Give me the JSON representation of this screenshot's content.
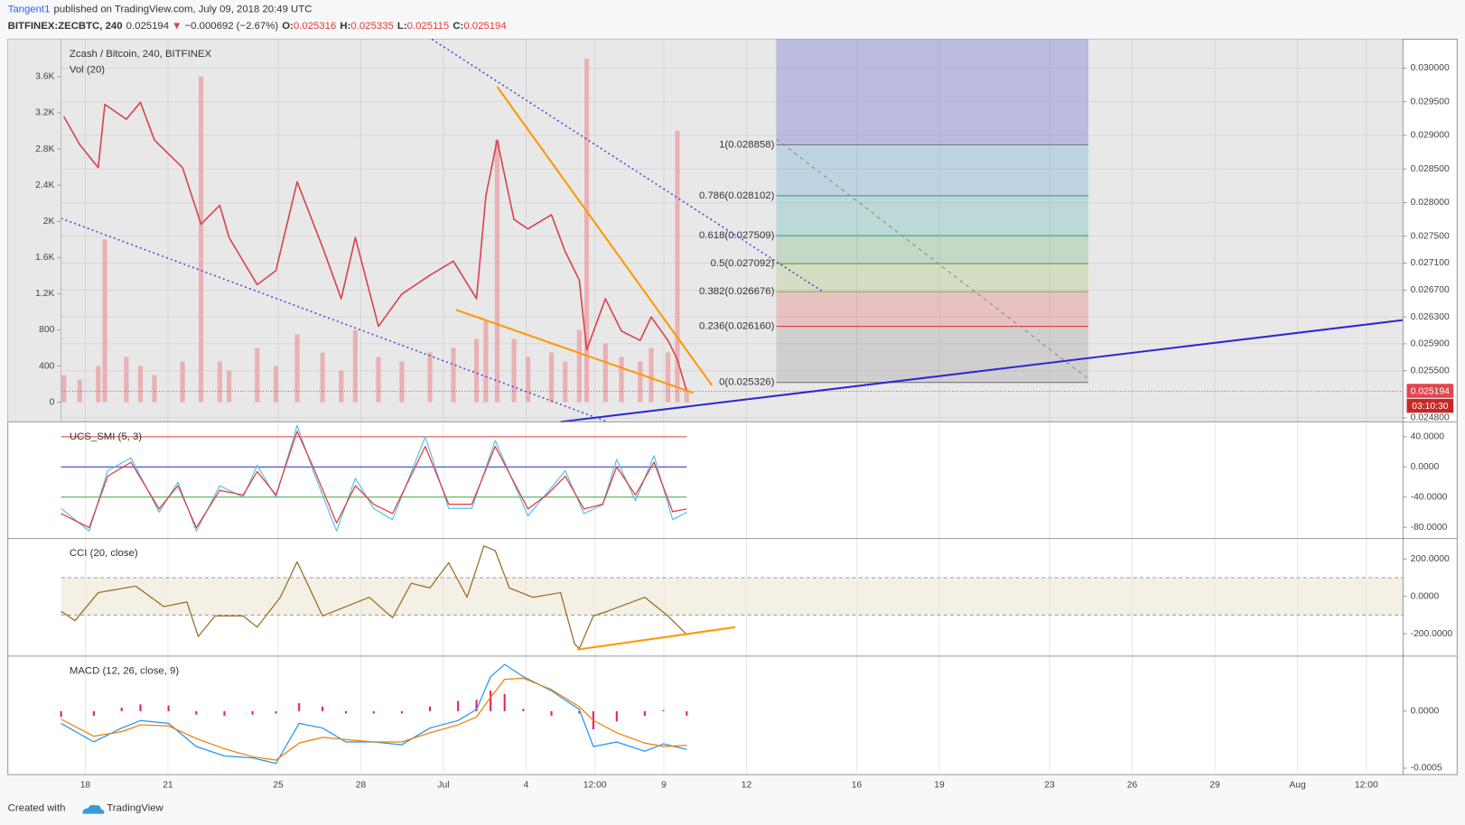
{
  "header": {
    "author": "Tangent1",
    "published": "published on TradingView.com, July 09, 2018 20:49 UTC",
    "symbol": "BITFINEX:ZECBTC, 240",
    "last": "0.025194",
    "arrow": "▼",
    "change": "−0.000692 (−2.67%)",
    "ohlc": [
      {
        "label": "O:",
        "value": "0.025316"
      },
      {
        "label": "H:",
        "value": "0.025335"
      },
      {
        "label": "L:",
        "value": "0.025115"
      },
      {
        "label": "C:",
        "value": "0.025194"
      }
    ]
  },
  "chart_data": [
    {
      "type": "line",
      "title": "Zcash / Bitcoin, 240, BITFINEX",
      "color": "#d9464f",
      "x": [
        -0.78,
        -0.2,
        0.47,
        0.71,
        1.49,
        2.0,
        2.51,
        3.53,
        4.2,
        4.88,
        5.22,
        6.24,
        6.92,
        7.69,
        8.61,
        9.29,
        9.8,
        10.64,
        11.49,
        12.51,
        13.36,
        14.2,
        14.54,
        14.95,
        15.56,
        16.07,
        16.92,
        17.42,
        17.93,
        18.2,
        18.88,
        19.46,
        20.14,
        20.54,
        21.15,
        21.49,
        21.83
      ],
      "values": [
        0.02928,
        0.02886,
        0.02852,
        0.02946,
        0.02924,
        0.02949,
        0.02893,
        0.02852,
        0.02768,
        0.02796,
        0.02748,
        0.02678,
        0.02699,
        0.02831,
        0.02734,
        0.02657,
        0.02748,
        0.02616,
        0.02664,
        0.02692,
        0.02713,
        0.02657,
        0.0281,
        0.02893,
        0.02775,
        0.02761,
        0.02782,
        0.02727,
        0.02685,
        0.02581,
        0.02657,
        0.02609,
        0.02595,
        0.0263,
        0.02595,
        0.02567,
        0.025194
      ],
      "xlim": [
        -0.88,
        47.83
      ],
      "xticks": [
        {
          "value": 0,
          "label": "18"
        },
        {
          "value": 3,
          "label": "21"
        },
        {
          "value": 7,
          "label": "25"
        },
        {
          "value": 10,
          "label": "28"
        },
        {
          "value": 13,
          "label": "Jul"
        },
        {
          "value": 16,
          "label": "4"
        },
        {
          "value": 18.5,
          "label": "12:00"
        },
        {
          "value": 21,
          "label": "9"
        },
        {
          "value": 24,
          "label": "12"
        },
        {
          "value": 28,
          "label": "16"
        },
        {
          "value": 31,
          "label": "19"
        },
        {
          "value": 35,
          "label": "23"
        },
        {
          "value": 38,
          "label": "26"
        },
        {
          "value": 41,
          "label": "29"
        },
        {
          "value": 44,
          "label": "Aug"
        },
        {
          "value": 46.5,
          "label": "12:00"
        }
      ],
      "ylim": [
        0.02474,
        0.03043
      ],
      "yticks": [
        {
          "value": 0.03,
          "label": "0.030000"
        },
        {
          "value": 0.0295,
          "label": "0.029500"
        },
        {
          "value": 0.029,
          "label": "0.029000"
        },
        {
          "value": 0.0285,
          "label": "0.028500"
        },
        {
          "value": 0.028,
          "label": "0.028000"
        },
        {
          "value": 0.0275,
          "label": "0.027500"
        },
        {
          "value": 0.0271,
          "label": "0.027100"
        },
        {
          "value": 0.0267,
          "label": "0.026700"
        },
        {
          "value": 0.0263,
          "label": "0.026300"
        },
        {
          "value": 0.0259,
          "label": "0.025900"
        },
        {
          "value": 0.0255,
          "label": "0.025500"
        },
        {
          "value": 0.0248,
          "label": "0.024800"
        }
      ],
      "grid": true,
      "volume": {
        "title": "Vol (20)",
        "color": "#e8a3a8",
        "values": [
          300,
          250,
          400,
          1800,
          500,
          400,
          300,
          450,
          3600,
          450,
          350,
          600,
          400,
          750,
          550,
          350,
          800,
          500,
          450,
          550,
          600,
          700,
          900,
          2900,
          700,
          500,
          550,
          450,
          800,
          3800,
          650,
          500,
          450,
          600,
          550,
          3000,
          150
        ],
        "ylim": [
          -217,
          4014
        ],
        "yticks": [
          0,
          400,
          800,
          {
            "value": 1200,
            "label": "1.2K"
          },
          {
            "value": 1600,
            "label": "1.6K"
          },
          {
            "value": 2000,
            "label": "2K"
          },
          {
            "value": 2400,
            "label": "2.4K"
          },
          {
            "value": 2800,
            "label": "2.8K"
          },
          {
            "value": 3200,
            "label": "3.2K"
          },
          {
            "value": 3600,
            "label": "3.6K"
          }
        ]
      },
      "fib": {
        "x": [
          25.08,
          36.41
        ],
        "top_color": "#8e8ed6",
        "levels": [
          {
            "label": "1(0.028858)",
            "value": 0.028858,
            "color": "#787878"
          },
          {
            "label": "0.786(0.028102)",
            "value": 0.028102,
            "color": "#2b8bcc"
          },
          {
            "label": "0.618(0.027509)",
            "value": 0.027509,
            "color": "#26a69a"
          },
          {
            "label": "0.5(0.027092)",
            "value": 0.027092,
            "color": "#43a047"
          },
          {
            "label": "0.382(0.026676)",
            "value": 0.026676,
            "color": "#8bb93a"
          },
          {
            "label": "0.236(0.026160)",
            "value": 0.02616,
            "color": "#e53935"
          },
          {
            "label": "0(0.025326)",
            "value": 0.025326,
            "color": "#787878"
          }
        ]
      },
      "last_price": {
        "value": 0.025194,
        "label": "0.025194",
        "countdown": "03:10:30",
        "color": "#e0474f"
      }
    },
    {
      "type": "line",
      "title": "UCS_SMI (5, 3)",
      "x": [
        -0.88,
        0.14,
        0.81,
        1.66,
        2.68,
        3.36,
        4.03,
        4.88,
        5.73,
        6.24,
        6.92,
        7.69,
        8.27,
        9.12,
        9.8,
        10.47,
        11.15,
        12.34,
        13.19,
        14.03,
        14.88,
        16.07,
        16.75,
        17.42,
        18.1,
        18.78,
        19.29,
        19.97,
        20.64,
        21.32,
        21.83
      ],
      "series": [
        {
          "color": "#5bc0f0",
          "values": [
            -55,
            -85,
            -5,
            12,
            -60,
            -20,
            -85,
            -25,
            -40,
            2,
            -40,
            55,
            -5,
            -85,
            -15,
            -55,
            -70,
            40,
            -55,
            -55,
            35,
            -65,
            -35,
            -5,
            -62,
            -50,
            10,
            -45,
            15,
            -70,
            -60
          ]
        },
        {
          "color": "#e53935",
          "values": [
            -61.9,
            -80.5,
            -12.4,
            6.2,
            -55.7,
            -24.8,
            -80.5,
            -31,
            -37.2,
            -6.2,
            -37.2,
            47.1,
            0,
            -74.3,
            -24.8,
            -49.5,
            -61.9,
            27.2,
            -49.5,
            -49.5,
            27.2,
            -55.7,
            -37.2,
            -12.4,
            -55.7,
            -49.5,
            0,
            -37.2,
            6.2,
            -59.4,
            -55.7
          ]
        }
      ],
      "levels": [
        {
          "value": 40,
          "color": "#e53935"
        },
        {
          "value": 0,
          "color": "#3344cc"
        },
        {
          "value": -40,
          "color": "#43a047"
        }
      ],
      "ylim": [
        -94.9,
        59.8
      ],
      "yticks": [
        {
          "value": 40,
          "label": "40.0000"
        },
        {
          "value": 0,
          "label": "0.0000"
        },
        {
          "value": -40,
          "label": "-40.0000"
        },
        {
          "value": -80,
          "label": "-80.0000"
        }
      ]
    },
    {
      "type": "line",
      "title": "CCI (20, close)",
      "x": [
        -0.88,
        -0.37,
        0.47,
        1.83,
        2.85,
        3.69,
        4.1,
        4.71,
        5.73,
        6.24,
        7.08,
        7.69,
        8.61,
        9.46,
        10.31,
        11.15,
        11.83,
        12.51,
        13.19,
        13.86,
        14.47,
        14.88,
        15.39,
        16.24,
        17.25,
        17.76,
        17.93,
        18.44,
        18.95,
        20.31,
        21.15,
        21.83
      ],
      "series": [
        {
          "color": "#9c6a1e",
          "values": [
            -80,
            -130,
            20,
            55,
            -55,
            -30,
            -215,
            -105,
            -105,
            -165,
            -5,
            185,
            -105,
            -55,
            -5,
            -115,
            70,
            45,
            180,
            -5,
            270,
            245,
            45,
            -5,
            20,
            -255,
            -280,
            -105,
            -80,
            -5,
            -105,
            -205
          ]
        }
      ],
      "band": [
        -100,
        100
      ],
      "ylim": [
        -320,
        310
      ],
      "yticks": [
        {
          "value": 200,
          "label": "200.0000"
        },
        {
          "value": 0,
          "label": "0.0000"
        },
        {
          "value": -200,
          "label": "-200.0000"
        }
      ]
    },
    {
      "type": "line",
      "title": "MACD (12, 26, close, 9)",
      "x": [
        -0.88,
        0.31,
        1.32,
        2.0,
        3.02,
        4.03,
        5.05,
        6.07,
        6.92,
        7.76,
        8.61,
        9.46,
        10.47,
        11.49,
        12.51,
        13.53,
        14.2,
        14.71,
        15.22,
        15.9,
        16.92,
        17.93,
        18.44,
        19.29,
        20.31,
        20.98,
        21.83
      ],
      "series": [
        {
          "color": "#e91e63",
          "style": "histogram",
          "values": [
            -5e-05,
            -4e-05,
            3e-05,
            6e-05,
            5e-05,
            -3e-05,
            -4e-05,
            -3e-05,
            -2e-05,
            7e-05,
            4e-05,
            -2e-05,
            -2e-05,
            -2e-05,
            4e-05,
            9e-05,
            0.0001,
            0.00018,
            0.00015,
            2e-05,
            -4e-05,
            -2e-05,
            -0.00016,
            -9e-05,
            -4e-05,
            1e-05,
            -4e-05
          ]
        },
        {
          "color": "#2196f3",
          "values": [
            -0.000107,
            -0.00027,
            -0.000148,
            -8.2e-05,
            -0.000107,
            -0.000311,
            -0.000393,
            -0.00041,
            -0.000459,
            -0.000107,
            -0.000148,
            -0.00027,
            -0.00027,
            -0.000295,
            -0.000148,
            -8.2e-05,
            1.6e-05,
            0.000303,
            0.00041,
            0.000303,
            0.00018,
            1.6e-05,
            -0.000311,
            -0.00027,
            -0.000352,
            -0.000287,
            -0.000336
          ]
        },
        {
          "color": "#f57c00",
          "values": [
            -7e-05,
            -0.00022,
            -0.00018,
            -0.00012,
            -0.00013,
            -0.00024,
            -0.00033,
            -0.0004,
            -0.00043,
            -0.00028,
            -0.00023,
            -0.00025,
            -0.00027,
            -0.00027,
            -0.00019,
            -0.00012,
            -5e-05,
            0.00012,
            0.00028,
            0.00029,
            0.00019,
            4e-05,
            -8e-05,
            -0.00019,
            -0.00028,
            -0.00031,
            -0.0003
          ]
        }
      ],
      "ylim": [
        -0.000557,
        0.000484
      ],
      "yticks": [
        {
          "value": 0,
          "label": "0.0000"
        },
        {
          "value": -0.0005,
          "label": "-0.0005"
        }
      ]
    }
  ],
  "footer": {
    "created": "Created with",
    "brand": "TradingView"
  }
}
